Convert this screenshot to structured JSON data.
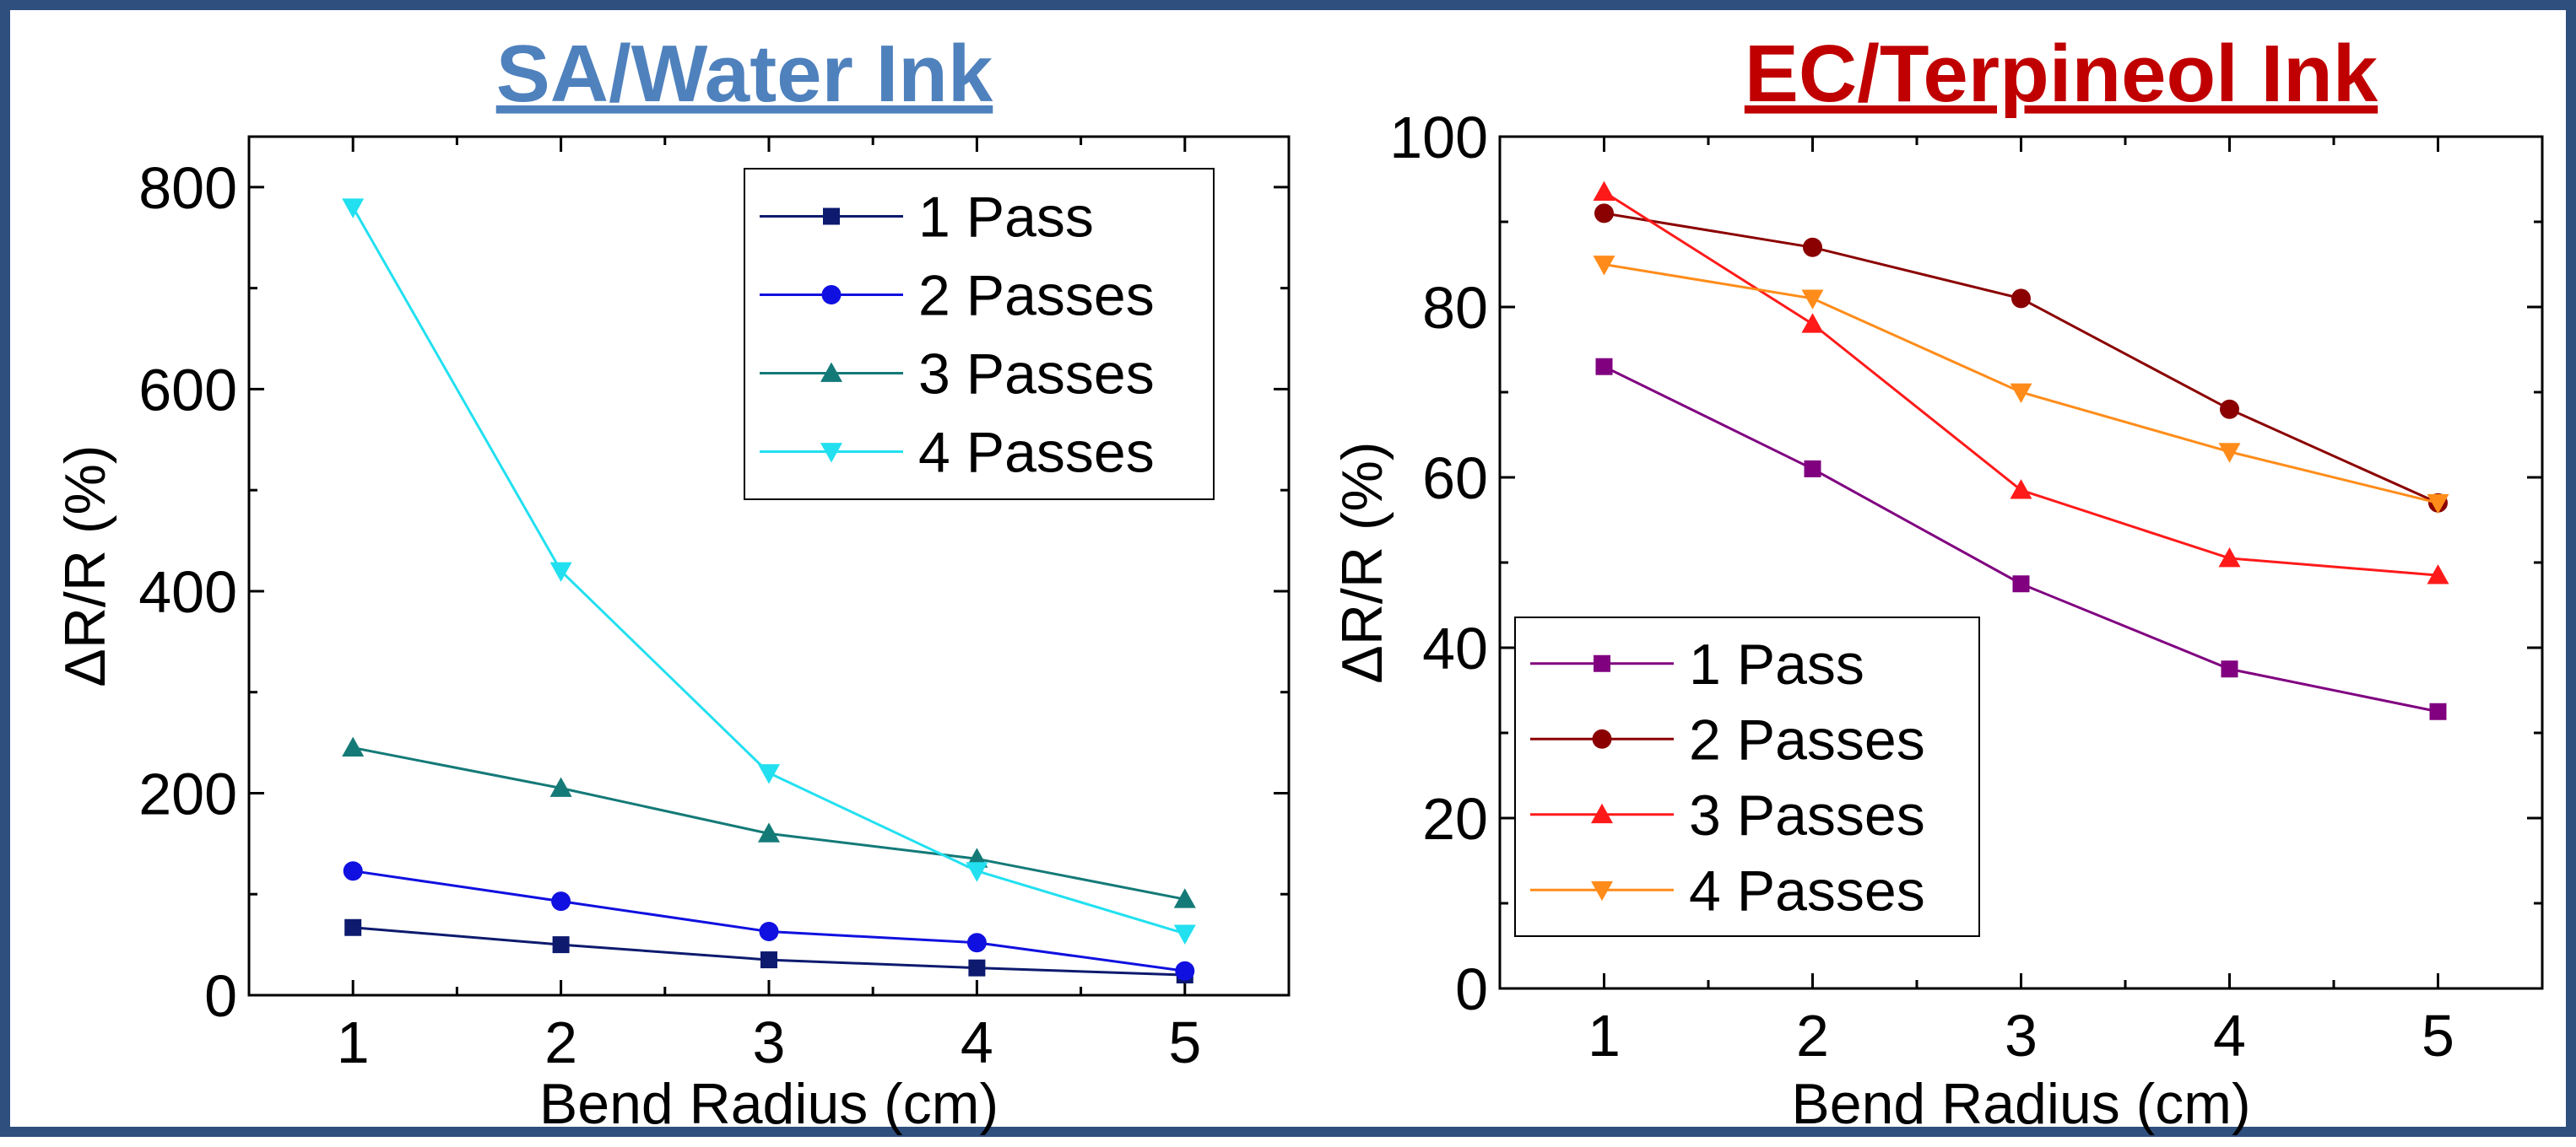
{
  "chart_data": [
    {
      "type": "line",
      "title": "SA/Water Ink",
      "title_color": "#4f81bd",
      "xlabel": "Bend Radius (cm)",
      "ylabel": "ΔR/R (%)",
      "x": [
        1,
        2,
        3,
        4,
        5
      ],
      "x_ticks": [
        "1",
        "2",
        "3",
        "4",
        "5"
      ],
      "y_ticks": [
        "0",
        "200",
        "400",
        "600",
        "800"
      ],
      "xlim": [
        0.5,
        5.5
      ],
      "ylim": [
        0,
        850
      ],
      "legend_position": "top-right",
      "grid": false,
      "series": [
        {
          "name": "1 Pass",
          "values": [
            67,
            50,
            35,
            27,
            20
          ],
          "color": "#0d1a6e",
          "marker": "square"
        },
        {
          "name": "2 Passes",
          "values": [
            123,
            93,
            63,
            52,
            24
          ],
          "color": "#1010e0",
          "marker": "circle"
        },
        {
          "name": "3 Passes",
          "values": [
            245,
            205,
            160,
            135,
            95
          ],
          "color": "#147a78",
          "marker": "triangle-up"
        },
        {
          "name": "4 Passes",
          "values": [
            780,
            420,
            220,
            123,
            61
          ],
          "color": "#22e0f0",
          "marker": "triangle-down"
        }
      ]
    },
    {
      "type": "line",
      "title": "EC/Terpineol Ink",
      "title_color": "#c00000",
      "xlabel": "Bend Radius (cm)",
      "ylabel": "ΔR/R (%)",
      "x": [
        1,
        2,
        3,
        4,
        5
      ],
      "x_ticks": [
        "1",
        "2",
        "3",
        "4",
        "5"
      ],
      "y_ticks": [
        "0",
        "20",
        "40",
        "60",
        "80",
        "100"
      ],
      "xlim": [
        0.5,
        5.5
      ],
      "ylim": [
        0,
        100
      ],
      "legend_position": "bottom-left",
      "grid": false,
      "series": [
        {
          "name": "1 Pass",
          "values": [
            73,
            61,
            47.5,
            37.5,
            32.5
          ],
          "color": "#800080",
          "marker": "square"
        },
        {
          "name": "2 Passes",
          "values": [
            91,
            87,
            81,
            68,
            57
          ],
          "color": "#8b0000",
          "marker": "circle"
        },
        {
          "name": "3 Passes",
          "values": [
            93.5,
            78,
            58.5,
            50.5,
            48.5
          ],
          "color": "#ff1a1a",
          "marker": "triangle-up"
        },
        {
          "name": "4 Passes",
          "values": [
            85,
            81,
            70,
            63,
            57
          ],
          "color": "#ff8c1a",
          "marker": "triangle-down"
        }
      ]
    }
  ]
}
